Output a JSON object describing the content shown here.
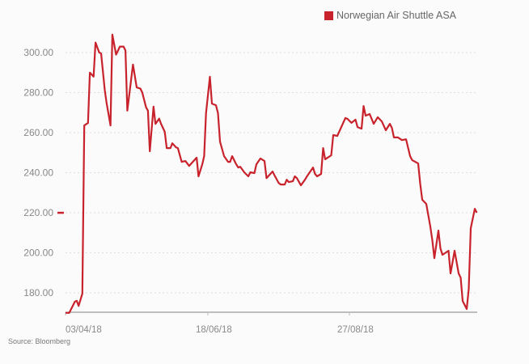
{
  "legend": {
    "label": "Norwegian Air Shuttle ASA",
    "color": "#c8232c"
  },
  "source": "Source: Bloomberg",
  "chart_data": {
    "type": "line",
    "title": "",
    "xlabel": "",
    "ylabel": "",
    "ylim": [
      170,
      310
    ],
    "grid": true,
    "legend_position": "top-right",
    "y_ticks": [
      "180.00",
      "200.00",
      "220.00",
      "240.00",
      "260.00",
      "280.00",
      "300.00"
    ],
    "x_ticks": [
      {
        "date": "2018-04-03",
        "label": "03/04/18"
      },
      {
        "date": "2018-06-18",
        "label": "18/06/18"
      },
      {
        "date": "2018-08-27",
        "label": "27/08/18"
      }
    ],
    "last_value_marker": 220,
    "series": [
      {
        "name": "Norwegian Air Shuttle ASA",
        "color": "#c8232c",
        "x": [
          "2018-04-03",
          "2018-04-05",
          "2018-04-08",
          "2018-04-09",
          "2018-04-10",
          "2018-04-12",
          "2018-04-13",
          "2018-04-15",
          "2018-04-16",
          "2018-04-18",
          "2018-04-19",
          "2018-04-21",
          "2018-04-22",
          "2018-04-24",
          "2018-04-25",
          "2018-04-27",
          "2018-04-28",
          "2018-04-30",
          "2018-05-02",
          "2018-05-04",
          "2018-05-05",
          "2018-05-06",
          "2018-05-09",
          "2018-05-11",
          "2018-05-13",
          "2018-05-14",
          "2018-05-16",
          "2018-05-17",
          "2018-05-18",
          "2018-05-20",
          "2018-05-21",
          "2018-05-23",
          "2018-05-24",
          "2018-05-26",
          "2018-05-27",
          "2018-05-29",
          "2018-05-30",
          "2018-06-01",
          "2018-06-02",
          "2018-06-04",
          "2018-06-06",
          "2018-06-08",
          "2018-06-12",
          "2018-06-13",
          "2018-06-15",
          "2018-06-16",
          "2018-06-17",
          "2018-06-19",
          "2018-06-20",
          "2018-06-22",
          "2018-06-23",
          "2018-06-24",
          "2018-06-26",
          "2018-06-28",
          "2018-06-29",
          "2018-06-30",
          "2018-07-02",
          "2018-07-03",
          "2018-07-04",
          "2018-07-06",
          "2018-07-08",
          "2018-07-09",
          "2018-07-11",
          "2018-07-12",
          "2018-07-14",
          "2018-07-16",
          "2018-07-17",
          "2018-07-20",
          "2018-07-21",
          "2018-07-23",
          "2018-07-24",
          "2018-07-26",
          "2018-07-27",
          "2018-07-28",
          "2018-07-30",
          "2018-07-31",
          "2018-08-01",
          "2018-08-03",
          "2018-08-05",
          "2018-08-06",
          "2018-08-09",
          "2018-08-10",
          "2018-08-11",
          "2018-08-13",
          "2018-08-14",
          "2018-08-15",
          "2018-08-18",
          "2018-08-19",
          "2018-08-21",
          "2018-08-25",
          "2018-08-26",
          "2018-08-28",
          "2018-08-30",
          "2018-08-31",
          "2018-09-02",
          "2018-09-03",
          "2018-09-04",
          "2018-09-06",
          "2018-09-08",
          "2018-09-10",
          "2018-09-12",
          "2018-09-14",
          "2018-09-16",
          "2018-09-17",
          "2018-09-18",
          "2018-09-20",
          "2018-09-22",
          "2018-09-24",
          "2018-09-26",
          "2018-09-27",
          "2018-09-30",
          "2018-10-01",
          "2018-10-02",
          "2018-10-04",
          "2018-10-06",
          "2018-10-07",
          "2018-10-08",
          "2018-10-10",
          "2018-10-11",
          "2018-10-12",
          "2018-10-15",
          "2018-10-16",
          "2018-10-18",
          "2018-10-20",
          "2018-10-21",
          "2018-10-22",
          "2018-10-24",
          "2018-10-25",
          "2018-10-26",
          "2018-10-28",
          "2018-10-29"
        ],
        "values": [
          170,
          170,
          175.6,
          176,
          173.5,
          179.6,
          263.6,
          264.8,
          290,
          288,
          305,
          300,
          299.6,
          281,
          274.5,
          263.6,
          309,
          299,
          303,
          303,
          301,
          271,
          294,
          282.6,
          282,
          280,
          272.6,
          271,
          250.7,
          273,
          264.4,
          267,
          264.4,
          260.4,
          252.3,
          252.3,
          254.7,
          252.7,
          252.3,
          245.4,
          245.8,
          243.4,
          247.5,
          238.2,
          244.2,
          248.3,
          269.7,
          287.9,
          274.5,
          273.7,
          269.7,
          255.5,
          248.3,
          245.4,
          245.4,
          248.3,
          244.2,
          242.6,
          243,
          240.2,
          238.2,
          240.2,
          239.8,
          244.2,
          247.1,
          245.8,
          237.3,
          240.6,
          238.6,
          234.9,
          234.1,
          234.1,
          236.5,
          235.3,
          235.7,
          238.2,
          237.3,
          233.7,
          236.5,
          238.2,
          242.6,
          239.4,
          238.2,
          239.4,
          252.3,
          246.7,
          248.7,
          258.8,
          258.4,
          267.3,
          266.9,
          264.9,
          266.5,
          262.8,
          262,
          273.3,
          268.5,
          269.3,
          264.4,
          267.7,
          265.6,
          261.2,
          264.4,
          262.4,
          257.6,
          257.6,
          256.3,
          256.7,
          248.3,
          246.3,
          244.6,
          234.5,
          226.5,
          224.4,
          213.1,
          206.2,
          197.3,
          211.1,
          202.2,
          199,
          201,
          189.7,
          201,
          189.7,
          187.6,
          175.9,
          171.9,
          182,
          212.3,
          222,
          220
        ]
      }
    ]
  }
}
